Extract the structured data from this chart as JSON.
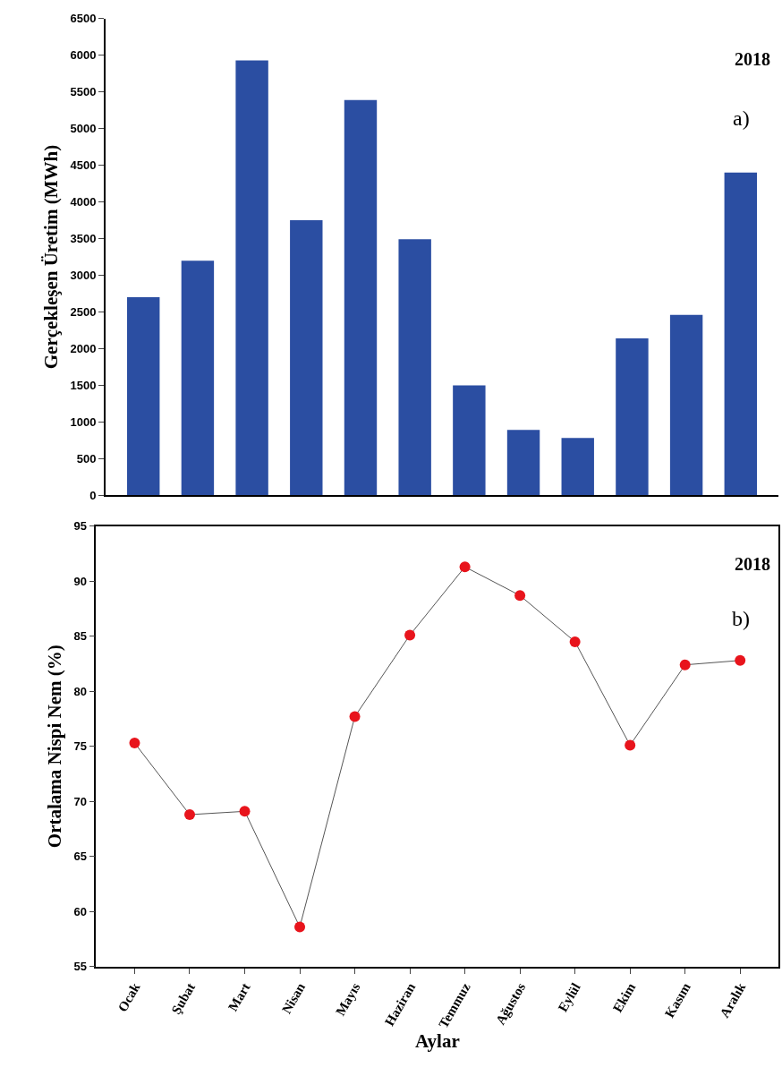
{
  "chart_data": [
    {
      "type": "bar",
      "ylabel": "Gerçekleşen Üretim (MWh)",
      "categories": [
        null,
        null,
        null,
        null,
        null,
        null,
        null,
        null,
        null,
        null,
        null,
        null
      ],
      "values": [
        2700,
        3200,
        5930,
        3750,
        5390,
        3490,
        1500,
        890,
        780,
        2140,
        2460,
        4400
      ],
      "color": "#2b4ea2",
      "ylim": [
        0,
        6500
      ],
      "yticks": [
        0,
        500,
        1000,
        1500,
        2000,
        2500,
        3000,
        3500,
        4000,
        4500,
        5000,
        5500,
        6000,
        6500
      ],
      "tick_labels": "y",
      "annotations": [
        "2018",
        "a)"
      ]
    },
    {
      "type": "line",
      "xlabel": "Aylar",
      "ylabel": "Ortalama Nispi Nem (%)",
      "categories": [
        "Ocak",
        "Şubat",
        "Mart",
        "Nisan",
        "Mayıs",
        "Haziran",
        "Temmuz",
        "Ağustos",
        "Eylül",
        "Ekim",
        "Kasım",
        "Aralık"
      ],
      "series": [
        {
          "color": "#e8141c",
          "values": [
            75.3,
            68.8,
            69.1,
            58.6,
            77.7,
            85.1,
            91.3,
            88.7,
            84.5,
            75.1,
            82.4,
            82.8
          ]
        }
      ],
      "ylim": [
        55,
        95
      ],
      "yticks": [
        55,
        60,
        65,
        70,
        75,
        80,
        85,
        90,
        95
      ],
      "marker": "circle",
      "line_style": "solid",
      "annotations": [
        "2018",
        "b)"
      ]
    }
  ]
}
